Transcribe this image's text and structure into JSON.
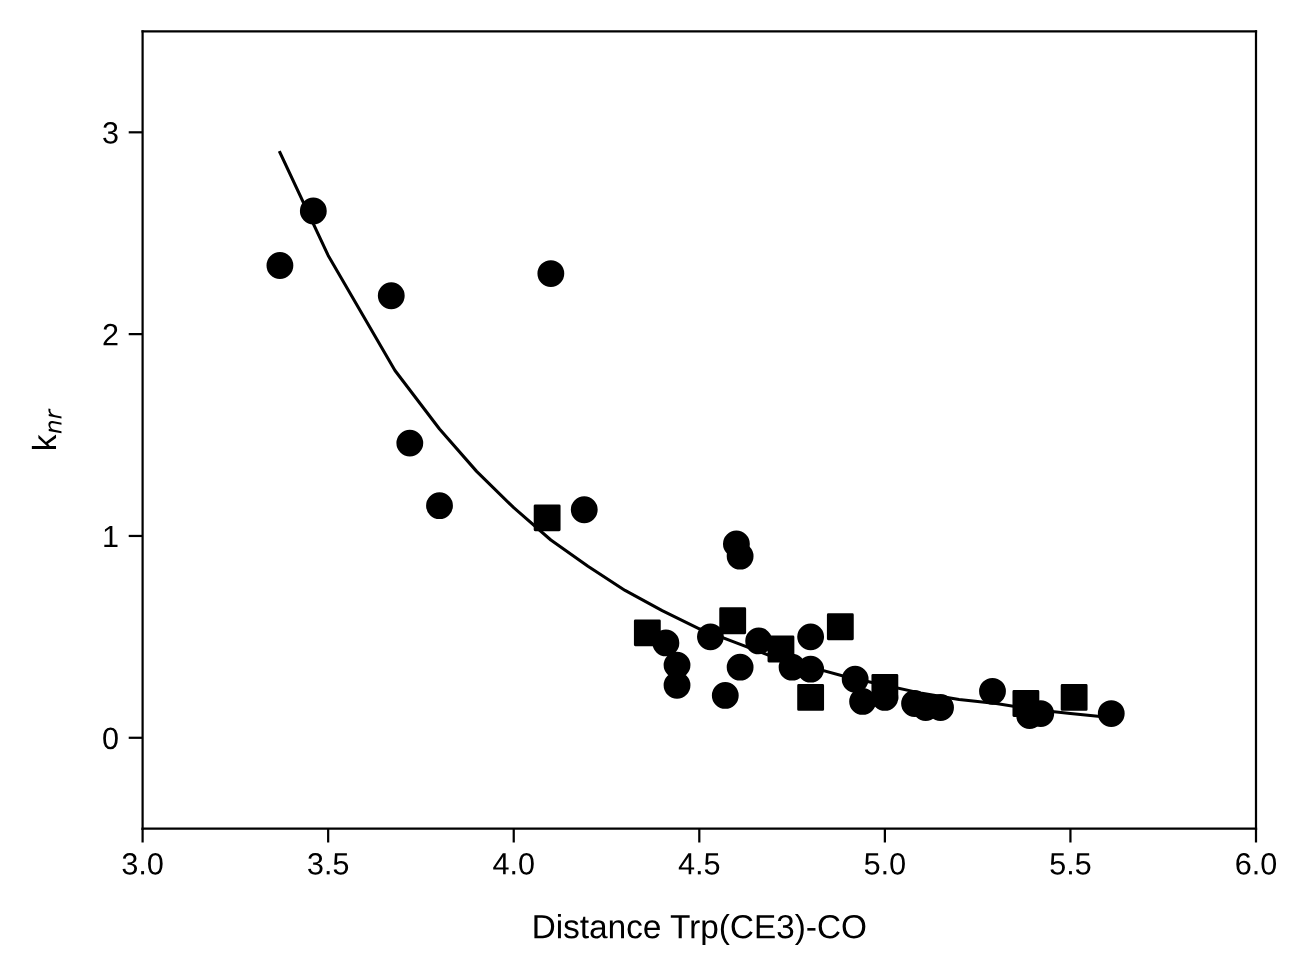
{
  "chart_data": {
    "type": "scatter",
    "xlabel": "Distance Trp(CE3)-CO",
    "ylabel": "k$_{nr}$",
    "xlim": [
      3.0,
      6.0
    ],
    "ylim": [
      -0.45,
      3.5
    ],
    "xticks": [
      {
        "value": 3.0,
        "label": "3.0"
      },
      {
        "value": 3.5,
        "label": "3.5"
      },
      {
        "value": 4.0,
        "label": "4.0"
      },
      {
        "value": 4.5,
        "label": "4.5"
      },
      {
        "value": 5.0,
        "label": "5.0"
      },
      {
        "value": 5.5,
        "label": "5.5"
      },
      {
        "value": 6.0,
        "label": "6.0"
      }
    ],
    "yticks": [
      0,
      1,
      2,
      3
    ],
    "grid": false,
    "legend": false,
    "series": [
      {
        "marker": "circle",
        "color": "#000000",
        "x": [
          3.37,
          3.46,
          3.67,
          3.72,
          3.8,
          4.1,
          4.19,
          4.41,
          4.44,
          4.44,
          4.53,
          4.57,
          4.6,
          4.61,
          4.61,
          4.66,
          4.75,
          4.8,
          4.8,
          4.92,
          4.94,
          5.0,
          5.08,
          5.11,
          5.15,
          5.29,
          5.39,
          5.42,
          5.61
        ],
        "values": [
          2.34,
          2.61,
          2.19,
          1.46,
          1.15,
          2.3,
          1.13,
          0.47,
          0.36,
          0.26,
          0.5,
          0.21,
          0.96,
          0.9,
          0.35,
          0.48,
          0.35,
          0.5,
          0.34,
          0.29,
          0.18,
          0.2,
          0.17,
          0.15,
          0.15,
          0.23,
          0.11,
          0.12,
          0.12
        ]
      },
      {
        "marker": "square",
        "color": "#000000",
        "x": [
          4.09,
          4.36,
          4.59,
          4.72,
          4.8,
          4.88,
          5.0,
          5.38,
          5.51
        ],
        "values": [
          1.09,
          0.52,
          0.58,
          0.44,
          0.2,
          0.55,
          0.25,
          0.17,
          0.2
        ]
      },
      {
        "type": "line",
        "marker": "none",
        "line_style": "solid",
        "color": "#000000",
        "x": [
          3.37,
          3.5,
          3.68,
          3.8,
          3.9,
          4.0,
          4.1,
          4.2,
          4.3,
          4.4,
          4.5,
          4.6,
          4.7,
          4.8,
          4.9,
          5.0,
          5.1,
          5.2,
          5.3,
          5.4,
          5.5,
          5.61
        ],
        "values": [
          2.9,
          2.39,
          1.82,
          1.53,
          1.32,
          1.14,
          0.98,
          0.85,
          0.73,
          0.63,
          0.54,
          0.47,
          0.4,
          0.35,
          0.3,
          0.26,
          0.22,
          0.19,
          0.17,
          0.14,
          0.12,
          0.1
        ]
      }
    ]
  }
}
